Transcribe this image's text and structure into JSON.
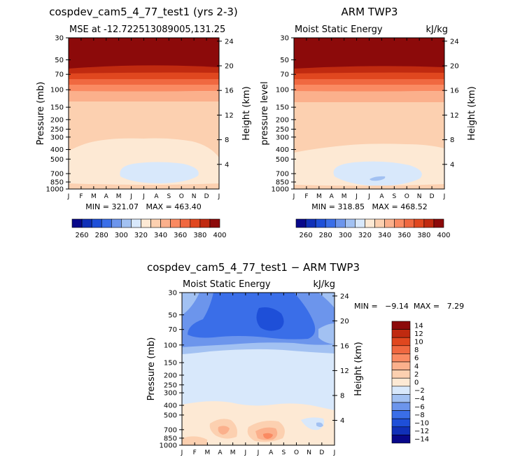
{
  "chart_data": [
    {
      "type": "heatmap",
      "title": "cospdev_cam5_4_77_test1 (yrs 2-3)",
      "subtitle_left": "MSE at -12.722513089005,131.25",
      "subtitle_right": "",
      "ylabel": "Pressure (mb)",
      "ylabel_right": "Height (km)",
      "xlabel": "",
      "months": [
        "J",
        "F",
        "M",
        "A",
        "M",
        "J",
        "J",
        "A",
        "S",
        "O",
        "N",
        "D",
        "J"
      ],
      "pressure_ticks": [
        30,
        50,
        70,
        100,
        150,
        200,
        250,
        300,
        400,
        500,
        700,
        850,
        1000
      ],
      "height_ticks": [
        24,
        20,
        16,
        12,
        8,
        4
      ],
      "stats": "MIN = 321.07   MAX = 463.40",
      "colorbar_labels": [
        "260",
        "280",
        "300",
        "320",
        "340",
        "360",
        "380",
        "400"
      ]
    },
    {
      "type": "heatmap",
      "title": "ARM TWP3",
      "subtitle_left": "Moist Static Energy",
      "subtitle_right": "kJ/kg",
      "ylabel": "pressure level",
      "ylabel_right": "Height (km)",
      "xlabel": "",
      "months": [
        "J",
        "F",
        "M",
        "A",
        "M",
        "J",
        "J",
        "A",
        "S",
        "O",
        "N",
        "D",
        "J"
      ],
      "pressure_ticks": [
        30,
        50,
        70,
        100,
        150,
        200,
        250,
        300,
        400,
        500,
        700,
        850,
        1000
      ],
      "height_ticks": [
        24,
        20,
        16,
        12,
        8,
        4
      ],
      "stats": "MIN = 318.85   MAX = 468.52",
      "colorbar_labels": [
        "260",
        "280",
        "300",
        "320",
        "340",
        "360",
        "380",
        "400"
      ]
    },
    {
      "type": "heatmap",
      "title": "cospdev_cam5_4_77_test1 − ARM TWP3",
      "subtitle_left": "Moist Static Energy",
      "subtitle_right": "kJ/kg",
      "ylabel": "Pressure (mb)",
      "ylabel_right": "Height (km)",
      "xlabel": "",
      "months": [
        "J",
        "F",
        "M",
        "A",
        "M",
        "J",
        "J",
        "A",
        "S",
        "O",
        "N",
        "D",
        "J"
      ],
      "pressure_ticks": [
        30,
        50,
        70,
        100,
        150,
        200,
        250,
        300,
        400,
        500,
        700,
        850,
        1000
      ],
      "height_ticks": [
        24,
        20,
        16,
        12,
        8,
        4
      ],
      "stats": "MIN =   −9.14  MAX =   7.29",
      "colorbar_labels": [
        "14",
        "12",
        "10",
        "8",
        "6",
        "4",
        "2",
        "0",
        "−2",
        "−4",
        "−6",
        "−8",
        "−10",
        "−12",
        "−14"
      ]
    }
  ],
  "colors": {
    "mse_scale": [
      "#08088a",
      "#1030b8",
      "#1e4fd8",
      "#3a6ee8",
      "#6c95ec",
      "#a2c1f2",
      "#d8e8fb",
      "#fde9d4",
      "#fcd0b0",
      "#fbb08c",
      "#fa8a62",
      "#f06840",
      "#e0471f",
      "#c02a10",
      "#8c0a0a"
    ],
    "diff_scale": [
      "#8c0a0a",
      "#c02a10",
      "#e0471f",
      "#f06840",
      "#fa8a62",
      "#fbb08c",
      "#fcd0b0",
      "#fde9d4",
      "#d8e8fb",
      "#a2c1f2",
      "#6c95ec",
      "#3a6ee8",
      "#1e4fd8",
      "#1030b8",
      "#08088a"
    ]
  }
}
